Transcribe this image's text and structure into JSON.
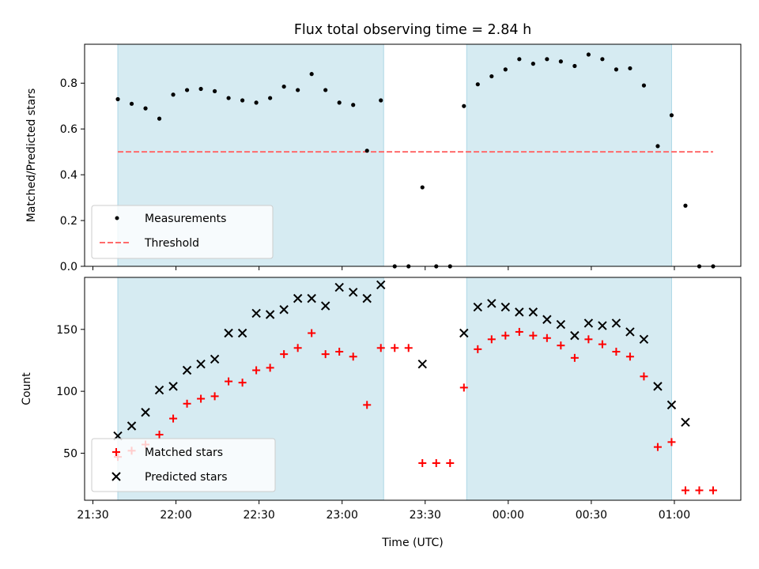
{
  "chart_data": [
    {
      "type": "scatter",
      "title": "Flux total observing time = 2.84 h",
      "xlabel": "",
      "ylabel": "Matched/Predicted stars",
      "x_unit": "time of day (UTC), panel starts 21:27",
      "xlim": [
        "21:27",
        "01:24"
      ],
      "ylim": [
        0,
        0.97
      ],
      "yticks": [
        0.0,
        0.2,
        0.4,
        0.6,
        0.8
      ],
      "ytick_labels": [
        "0.0",
        "0.2",
        "0.4",
        "0.6",
        "0.8"
      ],
      "shaded_intervals": [
        [
          "21:39",
          "23:15"
        ],
        [
          "23:45",
          "00:59"
        ]
      ],
      "legend_position": "lower left",
      "series": [
        {
          "name": "Measurements",
          "marker": "dot",
          "color": "#000000",
          "points": [
            [
              "21:39",
              0.73
            ],
            [
              "21:44",
              0.71
            ],
            [
              "21:49",
              0.69
            ],
            [
              "21:54",
              0.645
            ],
            [
              "21:59",
              0.75
            ],
            [
              "22:04",
              0.77
            ],
            [
              "22:09",
              0.775
            ],
            [
              "22:14",
              0.765
            ],
            [
              "22:19",
              0.735
            ],
            [
              "22:24",
              0.725
            ],
            [
              "22:29",
              0.715
            ],
            [
              "22:34",
              0.735
            ],
            [
              "22:39",
              0.785
            ],
            [
              "22:44",
              0.77
            ],
            [
              "22:49",
              0.84
            ],
            [
              "22:54",
              0.77
            ],
            [
              "22:59",
              0.715
            ],
            [
              "23:04",
              0.705
            ],
            [
              "23:09",
              0.505
            ],
            [
              "23:14",
              0.725
            ],
            [
              "23:19",
              0.0
            ],
            [
              "23:24",
              0.0
            ],
            [
              "23:29",
              0.345
            ],
            [
              "23:34",
              0.0
            ],
            [
              "23:39",
              0.0
            ],
            [
              "23:44",
              0.7
            ],
            [
              "23:49",
              0.795
            ],
            [
              "23:54",
              0.83
            ],
            [
              "23:59",
              0.86
            ],
            [
              "00:04",
              0.905
            ],
            [
              "00:09",
              0.885
            ],
            [
              "00:14",
              0.905
            ],
            [
              "00:19",
              0.895
            ],
            [
              "00:24",
              0.875
            ],
            [
              "00:29",
              0.925
            ],
            [
              "00:34",
              0.905
            ],
            [
              "00:39",
              0.86
            ],
            [
              "00:44",
              0.865
            ],
            [
              "00:49",
              0.79
            ],
            [
              "00:54",
              0.525
            ],
            [
              "00:59",
              0.66
            ],
            [
              "01:04",
              0.265
            ],
            [
              "01:09",
              0.0
            ],
            [
              "01:14",
              0.0
            ]
          ]
        },
        {
          "name": "Threshold",
          "type": "line",
          "style": "dashed",
          "color": "#ff6b6b",
          "points": [
            [
              "21:39",
              0.5
            ],
            [
              "01:14",
              0.5
            ]
          ]
        }
      ]
    },
    {
      "type": "scatter",
      "title": "",
      "xlabel": "Time (UTC)",
      "ylabel": "Count",
      "xlim": [
        "21:27",
        "01:24"
      ],
      "ylim": [
        12,
        192
      ],
      "yticks": [
        50,
        100,
        150
      ],
      "ytick_labels": [
        "50",
        "100",
        "150"
      ],
      "xticks": [
        "21:30",
        "22:00",
        "22:30",
        "23:00",
        "23:30",
        "00:00",
        "00:30",
        "01:00"
      ],
      "xtick_labels": [
        "21:30",
        "22:00",
        "22:30",
        "23:00",
        "23:30",
        "00:00",
        "00:30",
        "01:00"
      ],
      "shaded_intervals": [
        [
          "21:39",
          "23:15"
        ],
        [
          "23:45",
          "00:59"
        ]
      ],
      "legend_position": "lower left",
      "series": [
        {
          "name": "Matched stars",
          "marker": "plus",
          "color": "#ff0000",
          "points": [
            [
              "21:39",
              47
            ],
            [
              "21:44",
              52
            ],
            [
              "21:49",
              57
            ],
            [
              "21:54",
              65
            ],
            [
              "21:59",
              78
            ],
            [
              "22:04",
              90
            ],
            [
              "22:09",
              94
            ],
            [
              "22:14",
              96
            ],
            [
              "22:19",
              108
            ],
            [
              "22:24",
              107
            ],
            [
              "22:29",
              117
            ],
            [
              "22:34",
              119
            ],
            [
              "22:39",
              130
            ],
            [
              "22:44",
              135
            ],
            [
              "22:49",
              147
            ],
            [
              "22:54",
              130
            ],
            [
              "22:59",
              132
            ],
            [
              "23:04",
              128
            ],
            [
              "23:09",
              89
            ],
            [
              "23:14",
              135
            ],
            [
              "23:19",
              135
            ],
            [
              "23:24",
              135
            ],
            [
              "23:29",
              42
            ],
            [
              "23:34",
              42
            ],
            [
              "23:39",
              42
            ],
            [
              "23:44",
              103
            ],
            [
              "23:49",
              134
            ],
            [
              "23:54",
              142
            ],
            [
              "23:59",
              145
            ],
            [
              "00:04",
              148
            ],
            [
              "00:09",
              145
            ],
            [
              "00:14",
              143
            ],
            [
              "00:19",
              137
            ],
            [
              "00:24",
              127
            ],
            [
              "00:29",
              142
            ],
            [
              "00:34",
              138
            ],
            [
              "00:39",
              132
            ],
            [
              "00:44",
              128
            ],
            [
              "00:49",
              112
            ],
            [
              "00:54",
              55
            ],
            [
              "00:59",
              59
            ],
            [
              "01:04",
              20
            ],
            [
              "01:09",
              20
            ],
            [
              "01:14",
              20
            ]
          ]
        },
        {
          "name": "Predicted stars",
          "marker": "x",
          "color": "#000000",
          "points": [
            [
              "21:39",
              64
            ],
            [
              "21:44",
              72
            ],
            [
              "21:49",
              83
            ],
            [
              "21:54",
              101
            ],
            [
              "21:59",
              104
            ],
            [
              "22:04",
              117
            ],
            [
              "22:09",
              122
            ],
            [
              "22:14",
              126
            ],
            [
              "22:19",
              147
            ],
            [
              "22:24",
              147
            ],
            [
              "22:29",
              163
            ],
            [
              "22:34",
              162
            ],
            [
              "22:39",
              166
            ],
            [
              "22:44",
              175
            ],
            [
              "22:49",
              175
            ],
            [
              "22:54",
              169
            ],
            [
              "22:59",
              184
            ],
            [
              "23:04",
              180
            ],
            [
              "23:09",
              175
            ],
            [
              "23:14",
              186
            ],
            [
              "23:29",
              122
            ],
            [
              "23:44",
              147
            ],
            [
              "23:49",
              168
            ],
            [
              "23:54",
              171
            ],
            [
              "23:59",
              168
            ],
            [
              "00:04",
              164
            ],
            [
              "00:09",
              164
            ],
            [
              "00:14",
              158
            ],
            [
              "00:19",
              154
            ],
            [
              "00:24",
              145
            ],
            [
              "00:29",
              155
            ],
            [
              "00:34",
              153
            ],
            [
              "00:39",
              155
            ],
            [
              "00:44",
              148
            ],
            [
              "00:49",
              142
            ],
            [
              "00:54",
              104
            ],
            [
              "00:59",
              89
            ],
            [
              "01:04",
              75
            ]
          ]
        }
      ]
    }
  ],
  "colors": {
    "shade": "#add8e6",
    "threshold": "#ff6b6b",
    "matched": "#ff0000",
    "measurement": "#000000",
    "predicted": "#000000"
  }
}
